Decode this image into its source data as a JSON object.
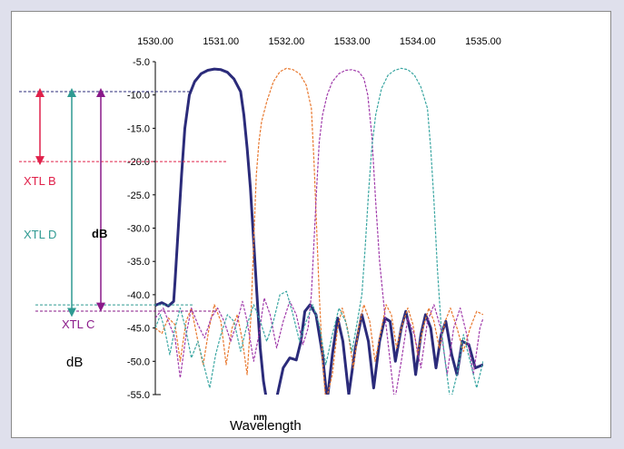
{
  "chart_data": {
    "type": "line",
    "title": "",
    "xlabel": "Wavelength",
    "xlabel_unit": "nm",
    "ylabel": "dB",
    "ylabel_left": "dB",
    "xlim": [
      1530.0,
      1535.0
    ],
    "ylim": [
      -55.0,
      -5.0
    ],
    "x_ticks": [
      "1530.00",
      "1531.00",
      "1532.00",
      "1533.00",
      "1534.00",
      "1535.00"
    ],
    "y_ticks": [
      "-5.0",
      "-10.0",
      "-15.0",
      "-20.0",
      "-25.0",
      "-30.0",
      "-35.0",
      "-40.0",
      "-45.0",
      "-50.0",
      "-55.0"
    ],
    "x_axis_position": "top",
    "grid": false,
    "series": [
      {
        "color": "#2b2b7a",
        "style": "solid-bold",
        "points": [
          [
            1530.0,
            -41.6
          ],
          [
            1530.1,
            -41.2
          ],
          [
            1530.2,
            -41.7
          ],
          [
            1530.28,
            -41.0
          ],
          [
            1530.3,
            -38.0
          ],
          [
            1530.35,
            -30.0
          ],
          [
            1530.4,
            -22.0
          ],
          [
            1530.45,
            -15.0
          ],
          [
            1530.52,
            -10.0
          ],
          [
            1530.6,
            -8.0
          ],
          [
            1530.7,
            -6.8
          ],
          [
            1530.8,
            -6.3
          ],
          [
            1530.9,
            -6.1
          ],
          [
            1531.0,
            -6.2
          ],
          [
            1531.1,
            -6.6
          ],
          [
            1531.2,
            -7.6
          ],
          [
            1531.3,
            -9.5
          ],
          [
            1531.35,
            -13.0
          ],
          [
            1531.4,
            -18.0
          ],
          [
            1531.45,
            -24.0
          ],
          [
            1531.5,
            -32.0
          ],
          [
            1531.55,
            -40.0
          ],
          [
            1531.6,
            -48.0
          ],
          [
            1531.65,
            -53.0
          ],
          [
            1531.7,
            -56.0
          ],
          [
            1531.85,
            -55.5
          ],
          [
            1531.95,
            -51.0
          ],
          [
            1532.05,
            -49.5
          ],
          [
            1532.15,
            -49.8
          ],
          [
            1532.22,
            -47.0
          ],
          [
            1532.28,
            -42.5
          ],
          [
            1532.36,
            -41.5
          ],
          [
            1532.45,
            -43.0
          ],
          [
            1532.55,
            -49.0
          ],
          [
            1532.62,
            -56.0
          ],
          [
            1532.7,
            -49.0
          ],
          [
            1532.78,
            -43.5
          ],
          [
            1532.86,
            -47.0
          ],
          [
            1532.95,
            -55.0
          ],
          [
            1533.05,
            -48.0
          ],
          [
            1533.15,
            -43.0
          ],
          [
            1533.25,
            -47.0
          ],
          [
            1533.33,
            -54.0
          ],
          [
            1533.42,
            -47.0
          ],
          [
            1533.5,
            -43.5
          ],
          [
            1533.58,
            -44.0
          ],
          [
            1533.66,
            -50.0
          ],
          [
            1533.75,
            -45.0
          ],
          [
            1533.82,
            -42.5
          ],
          [
            1533.9,
            -46.0
          ],
          [
            1533.97,
            -52.0
          ],
          [
            1534.05,
            -46.0
          ],
          [
            1534.12,
            -43.0
          ],
          [
            1534.2,
            -45.0
          ],
          [
            1534.28,
            -51.0
          ],
          [
            1534.36,
            -46.0
          ],
          [
            1534.43,
            -44.0
          ],
          [
            1534.52,
            -49.0
          ],
          [
            1534.6,
            -52.0
          ],
          [
            1534.68,
            -47.0
          ],
          [
            1534.78,
            -47.5
          ],
          [
            1534.88,
            -51.0
          ],
          [
            1535.0,
            -50.5
          ]
        ]
      },
      {
        "color": "#e8782e",
        "style": "dashed",
        "points": [
          [
            1530.0,
            -45.0
          ],
          [
            1530.1,
            -45.8
          ],
          [
            1530.2,
            -43.5
          ],
          [
            1530.3,
            -44.5
          ],
          [
            1530.38,
            -50.0
          ],
          [
            1530.47,
            -44.0
          ],
          [
            1530.55,
            -42.0
          ],
          [
            1530.65,
            -47.0
          ],
          [
            1530.73,
            -50.5
          ],
          [
            1530.82,
            -45.0
          ],
          [
            1530.9,
            -41.5
          ],
          [
            1531.0,
            -44.0
          ],
          [
            1531.08,
            -50.5
          ],
          [
            1531.17,
            -45.0
          ],
          [
            1531.25,
            -43.0
          ],
          [
            1531.33,
            -47.0
          ],
          [
            1531.4,
            -52.0
          ],
          [
            1531.46,
            -43.0
          ],
          [
            1531.5,
            -32.0
          ],
          [
            1531.54,
            -22.0
          ],
          [
            1531.58,
            -17.0
          ],
          [
            1531.62,
            -14.0
          ],
          [
            1531.7,
            -11.0
          ],
          [
            1531.8,
            -8.0
          ],
          [
            1531.9,
            -6.5
          ],
          [
            1532.0,
            -6.0
          ],
          [
            1532.1,
            -6.2
          ],
          [
            1532.2,
            -6.8
          ],
          [
            1532.3,
            -8.5
          ],
          [
            1532.38,
            -12.0
          ],
          [
            1532.42,
            -20.0
          ],
          [
            1532.46,
            -30.0
          ],
          [
            1532.5,
            -40.0
          ],
          [
            1532.55,
            -50.0
          ],
          [
            1532.6,
            -56.0
          ],
          [
            1532.7,
            -52.0
          ],
          [
            1532.78,
            -45.0
          ],
          [
            1532.85,
            -42.0
          ],
          [
            1532.93,
            -45.0
          ],
          [
            1533.02,
            -51.0
          ],
          [
            1533.1,
            -45.0
          ],
          [
            1533.18,
            -41.5
          ],
          [
            1533.27,
            -44.0
          ],
          [
            1533.35,
            -50.0
          ],
          [
            1533.43,
            -46.0
          ],
          [
            1533.52,
            -41.5
          ],
          [
            1533.6,
            -43.0
          ],
          [
            1533.68,
            -48.0
          ],
          [
            1533.75,
            -45.0
          ],
          [
            1533.85,
            -42.0
          ],
          [
            1533.93,
            -44.5
          ],
          [
            1534.0,
            -49.0
          ],
          [
            1534.08,
            -45.0
          ],
          [
            1534.17,
            -42.0
          ],
          [
            1534.25,
            -44.0
          ],
          [
            1534.33,
            -48.0
          ],
          [
            1534.42,
            -44.0
          ],
          [
            1534.5,
            -42.0
          ],
          [
            1534.6,
            -45.0
          ],
          [
            1534.7,
            -48.5
          ],
          [
            1534.8,
            -45.0
          ],
          [
            1534.9,
            -42.5
          ],
          [
            1535.0,
            -43.0
          ]
        ]
      },
      {
        "color": "#a03aaa",
        "style": "dashed",
        "points": [
          [
            1530.0,
            -43.5
          ],
          [
            1530.12,
            -42.0
          ],
          [
            1530.2,
            -44.0
          ],
          [
            1530.3,
            -46.5
          ],
          [
            1530.38,
            -52.5
          ],
          [
            1530.47,
            -46.0
          ],
          [
            1530.55,
            -42.0
          ],
          [
            1530.65,
            -44.5
          ],
          [
            1530.75,
            -46.5
          ],
          [
            1530.85,
            -43.5
          ],
          [
            1530.95,
            -42.0
          ],
          [
            1531.05,
            -44.0
          ],
          [
            1531.15,
            -47.0
          ],
          [
            1531.25,
            -44.0
          ],
          [
            1531.33,
            -41.0
          ],
          [
            1531.4,
            -44.0
          ],
          [
            1531.5,
            -50.0
          ],
          [
            1531.58,
            -46.0
          ],
          [
            1531.66,
            -40.5
          ],
          [
            1531.75,
            -43.0
          ],
          [
            1531.85,
            -48.0
          ],
          [
            1531.95,
            -44.0
          ],
          [
            1532.05,
            -41.0
          ],
          [
            1532.15,
            -43.0
          ],
          [
            1532.25,
            -47.5
          ],
          [
            1532.33,
            -45.0
          ],
          [
            1532.38,
            -40.0
          ],
          [
            1532.42,
            -32.0
          ],
          [
            1532.46,
            -24.0
          ],
          [
            1532.5,
            -17.0
          ],
          [
            1532.55,
            -13.0
          ],
          [
            1532.62,
            -10.0
          ],
          [
            1532.7,
            -8.0
          ],
          [
            1532.8,
            -6.8
          ],
          [
            1532.9,
            -6.3
          ],
          [
            1533.0,
            -6.2
          ],
          [
            1533.1,
            -6.5
          ],
          [
            1533.18,
            -7.5
          ],
          [
            1533.24,
            -10.0
          ],
          [
            1533.3,
            -16.0
          ],
          [
            1533.36,
            -26.0
          ],
          [
            1533.42,
            -35.0
          ],
          [
            1533.5,
            -43.0
          ],
          [
            1533.58,
            -50.0
          ],
          [
            1533.65,
            -56.0
          ],
          [
            1533.75,
            -50.0
          ],
          [
            1533.85,
            -43.5
          ],
          [
            1533.95,
            -46.0
          ],
          [
            1534.05,
            -51.0
          ],
          [
            1534.15,
            -44.0
          ],
          [
            1534.25,
            -41.5
          ],
          [
            1534.35,
            -45.0
          ],
          [
            1534.45,
            -52.0
          ],
          [
            1534.55,
            -45.0
          ],
          [
            1534.65,
            -42.0
          ],
          [
            1534.75,
            -46.0
          ],
          [
            1534.85,
            -52.0
          ],
          [
            1534.95,
            -45.0
          ],
          [
            1535.0,
            -43.5
          ]
        ]
      },
      {
        "color": "#3aa6a2",
        "style": "dashed",
        "points": [
          [
            1530.0,
            -45.0
          ],
          [
            1530.08,
            -43.0
          ],
          [
            1530.15,
            -45.5
          ],
          [
            1530.22,
            -49.0
          ],
          [
            1530.3,
            -45.0
          ],
          [
            1530.38,
            -42.0
          ],
          [
            1530.46,
            -45.0
          ],
          [
            1530.55,
            -49.5
          ],
          [
            1530.65,
            -47.0
          ],
          [
            1530.75,
            -51.0
          ],
          [
            1530.83,
            -54.0
          ],
          [
            1530.92,
            -49.0
          ],
          [
            1531.0,
            -46.0
          ],
          [
            1531.1,
            -43.0
          ],
          [
            1531.2,
            -44.0
          ],
          [
            1531.3,
            -48.5
          ],
          [
            1531.4,
            -44.5
          ],
          [
            1531.5,
            -41.5
          ],
          [
            1531.6,
            -44.0
          ],
          [
            1531.7,
            -47.0
          ],
          [
            1531.8,
            -44.0
          ],
          [
            1531.9,
            -40.0
          ],
          [
            1532.0,
            -39.5
          ],
          [
            1532.1,
            -43.0
          ],
          [
            1532.2,
            -47.0
          ],
          [
            1532.3,
            -44.0
          ],
          [
            1532.4,
            -41.5
          ],
          [
            1532.5,
            -44.5
          ],
          [
            1532.6,
            -50.5
          ],
          [
            1532.7,
            -46.0
          ],
          [
            1532.8,
            -42.0
          ],
          [
            1532.9,
            -44.0
          ],
          [
            1533.0,
            -48.5
          ],
          [
            1533.08,
            -44.0
          ],
          [
            1533.15,
            -40.0
          ],
          [
            1533.2,
            -33.0
          ],
          [
            1533.25,
            -25.0
          ],
          [
            1533.3,
            -18.0
          ],
          [
            1533.36,
            -13.0
          ],
          [
            1533.45,
            -9.0
          ],
          [
            1533.55,
            -7.0
          ],
          [
            1533.65,
            -6.3
          ],
          [
            1533.75,
            -6.0
          ],
          [
            1533.85,
            -6.2
          ],
          [
            1533.95,
            -7.0
          ],
          [
            1534.05,
            -8.8
          ],
          [
            1534.15,
            -12.0
          ],
          [
            1534.2,
            -18.0
          ],
          [
            1534.25,
            -26.0
          ],
          [
            1534.3,
            -36.0
          ],
          [
            1534.36,
            -45.0
          ],
          [
            1534.42,
            -50.0
          ],
          [
            1534.5,
            -56.0
          ],
          [
            1534.6,
            -52.0
          ],
          [
            1534.7,
            -46.0
          ],
          [
            1534.8,
            -50.0
          ],
          [
            1534.9,
            -54.0
          ],
          [
            1535.0,
            -50.0
          ]
        ]
      }
    ],
    "annotations": {
      "xtl_b": {
        "label": "XTL B",
        "color": "#e0214a",
        "from_db": -9.5,
        "to_db": -20.0
      },
      "xtl_d": {
        "label": "XTL D",
        "color": "#2f9a92",
        "from_db": -9.5,
        "to_db": -41.8
      },
      "xtl_c": {
        "label": "XTL C",
        "color": "#8a1a8a",
        "from_db": -9.5,
        "to_db": -42.2
      }
    }
  }
}
